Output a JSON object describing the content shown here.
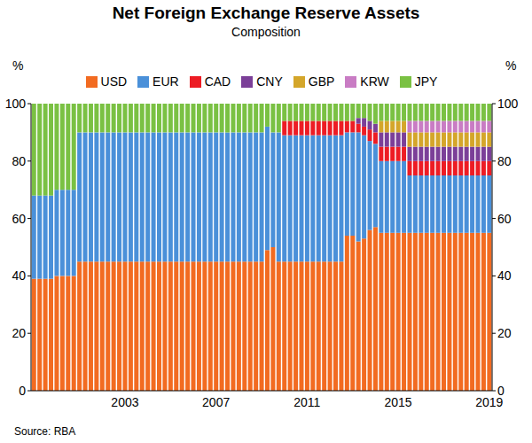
{
  "chart_data": {
    "type": "bar",
    "stacked": true,
    "grid": false,
    "title": "Net Foreign Exchange Reserve Assets",
    "subtitle": "Composition",
    "y_label": "%",
    "source": "Source: RBA",
    "categories": [
      null,
      null,
      null,
      null,
      null,
      null,
      null,
      null,
      null,
      null,
      null,
      null,
      null,
      null,
      null,
      null,
      "2003",
      null,
      null,
      null,
      null,
      null,
      null,
      null,
      null,
      null,
      null,
      null,
      null,
      null,
      null,
      null,
      "2007",
      null,
      null,
      null,
      null,
      null,
      null,
      null,
      null,
      null,
      null,
      null,
      null,
      null,
      null,
      null,
      "2011",
      null,
      null,
      null,
      null,
      null,
      null,
      null,
      null,
      null,
      null,
      null,
      null,
      null,
      null,
      null,
      "2015",
      null,
      null,
      null,
      null,
      null,
      null,
      null,
      null,
      null,
      null,
      null,
      null,
      null,
      null,
      null,
      "2019"
    ],
    "ylim": [
      0,
      100
    ],
    "yticks": [
      0,
      20,
      40,
      60,
      80,
      100
    ],
    "y2lim": [
      0,
      100
    ],
    "y2ticks": [
      0,
      20,
      40,
      60,
      80,
      100
    ],
    "series": [
      {
        "name": "USD",
        "color": "#f26b21",
        "values": [
          39,
          39,
          39,
          39,
          40,
          40,
          40,
          40,
          45,
          45,
          45,
          45,
          45,
          45,
          45,
          45,
          45,
          45,
          45,
          45,
          45,
          45,
          45,
          45,
          45,
          45,
          45,
          45,
          45,
          45,
          45,
          45,
          45,
          45,
          45,
          45,
          45,
          45,
          45,
          45,
          45,
          49,
          50,
          45,
          45,
          45,
          45,
          45,
          45,
          45,
          45,
          45,
          45,
          45,
          45,
          54,
          54,
          52,
          53,
          56,
          57,
          55,
          55,
          55,
          55,
          55,
          55,
          55,
          55,
          55,
          55,
          55,
          55,
          55,
          55,
          55,
          55,
          55,
          55,
          55,
          55
        ]
      },
      {
        "name": "EUR",
        "color": "#4a90d9",
        "values": [
          29,
          29,
          29,
          29,
          30,
          30,
          30,
          30,
          45,
          45,
          45,
          45,
          45,
          45,
          45,
          45,
          45,
          45,
          45,
          45,
          45,
          45,
          45,
          45,
          45,
          45,
          45,
          45,
          45,
          45,
          45,
          45,
          45,
          45,
          45,
          45,
          45,
          45,
          45,
          45,
          45,
          43,
          40,
          45,
          44,
          44,
          44,
          44,
          44,
          44,
          44,
          44,
          44,
          44,
          44,
          36,
          36,
          38,
          36,
          31,
          29,
          25,
          25,
          25,
          25,
          25,
          20,
          20,
          20,
          20,
          20,
          20,
          20,
          20,
          20,
          20,
          20,
          20,
          20,
          20,
          20
        ]
      },
      {
        "name": "CAD",
        "color": "#ed1c24",
        "values": [
          0,
          0,
          0,
          0,
          0,
          0,
          0,
          0,
          0,
          0,
          0,
          0,
          0,
          0,
          0,
          0,
          0,
          0,
          0,
          0,
          0,
          0,
          0,
          0,
          0,
          0,
          0,
          0,
          0,
          0,
          0,
          0,
          0,
          0,
          0,
          0,
          0,
          0,
          0,
          0,
          0,
          0,
          0,
          0,
          5,
          5,
          5,
          5,
          5,
          5,
          5,
          5,
          5,
          5,
          5,
          4,
          4,
          3,
          3,
          4,
          4,
          5,
          5,
          5,
          5,
          5,
          5,
          5,
          5,
          5,
          5,
          5,
          5,
          5,
          5,
          5,
          5,
          5,
          5,
          5,
          5
        ]
      },
      {
        "name": "CNY",
        "color": "#7b3f98",
        "values": [
          0,
          0,
          0,
          0,
          0,
          0,
          0,
          0,
          0,
          0,
          0,
          0,
          0,
          0,
          0,
          0,
          0,
          0,
          0,
          0,
          0,
          0,
          0,
          0,
          0,
          0,
          0,
          0,
          0,
          0,
          0,
          0,
          0,
          0,
          0,
          0,
          0,
          0,
          0,
          0,
          0,
          0,
          0,
          0,
          0,
          0,
          0,
          0,
          0,
          0,
          0,
          0,
          0,
          0,
          0,
          0,
          0,
          2,
          3,
          3,
          3,
          5,
          5,
          5,
          5,
          5,
          5,
          5,
          5,
          5,
          5,
          5,
          5,
          5,
          5,
          5,
          5,
          5,
          5,
          5,
          5
        ]
      },
      {
        "name": "GBP",
        "color": "#d4a62a",
        "values": [
          0,
          0,
          0,
          0,
          0,
          0,
          0,
          0,
          0,
          0,
          0,
          0,
          0,
          0,
          0,
          0,
          0,
          0,
          0,
          0,
          0,
          0,
          0,
          0,
          0,
          0,
          0,
          0,
          0,
          0,
          0,
          0,
          0,
          0,
          0,
          0,
          0,
          0,
          0,
          0,
          0,
          0,
          0,
          0,
          0,
          0,
          0,
          0,
          0,
          0,
          0,
          0,
          0,
          0,
          0,
          0,
          0,
          0,
          0,
          0,
          0,
          4,
          4,
          4,
          4,
          4,
          5,
          5,
          5,
          5,
          5,
          5,
          5,
          5,
          5,
          5,
          5,
          5,
          5,
          5,
          5
        ]
      },
      {
        "name": "KRW",
        "color": "#c97cc4",
        "values": [
          0,
          0,
          0,
          0,
          0,
          0,
          0,
          0,
          0,
          0,
          0,
          0,
          0,
          0,
          0,
          0,
          0,
          0,
          0,
          0,
          0,
          0,
          0,
          0,
          0,
          0,
          0,
          0,
          0,
          0,
          0,
          0,
          0,
          0,
          0,
          0,
          0,
          0,
          0,
          0,
          0,
          0,
          0,
          0,
          0,
          0,
          0,
          0,
          0,
          0,
          0,
          0,
          0,
          0,
          0,
          0,
          0,
          0,
          0,
          0,
          0,
          0,
          0,
          0,
          0,
          0,
          4,
          4,
          4,
          4,
          4,
          4,
          4,
          4,
          4,
          4,
          4,
          4,
          4,
          4,
          4
        ]
      },
      {
        "name": "JPY",
        "color": "#7ac143",
        "values": [
          32,
          32,
          32,
          32,
          30,
          30,
          30,
          30,
          10,
          10,
          10,
          10,
          10,
          10,
          10,
          10,
          10,
          10,
          10,
          10,
          10,
          10,
          10,
          10,
          10,
          10,
          10,
          10,
          10,
          10,
          10,
          10,
          10,
          10,
          10,
          10,
          10,
          10,
          10,
          10,
          10,
          8,
          10,
          10,
          6,
          6,
          6,
          6,
          6,
          6,
          6,
          6,
          6,
          6,
          6,
          6,
          6,
          5,
          5,
          6,
          7,
          6,
          6,
          6,
          6,
          6,
          6,
          6,
          6,
          6,
          6,
          6,
          6,
          6,
          6,
          6,
          6,
          6,
          6,
          6,
          6
        ]
      }
    ]
  }
}
